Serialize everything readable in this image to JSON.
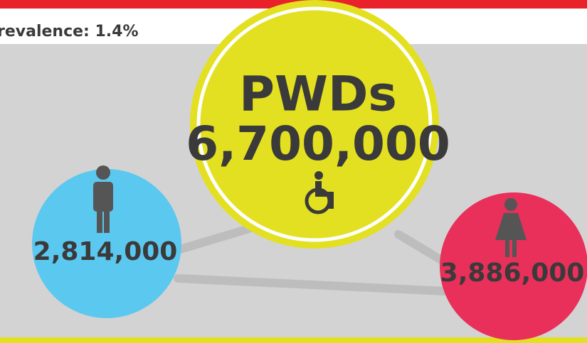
{
  "header": {
    "title": "revalence: 1.4%"
  },
  "total": {
    "label": "PWDs",
    "value": "6,700,000"
  },
  "male": {
    "value": "2,814,000"
  },
  "female": {
    "value": "3,886,000"
  }
}
